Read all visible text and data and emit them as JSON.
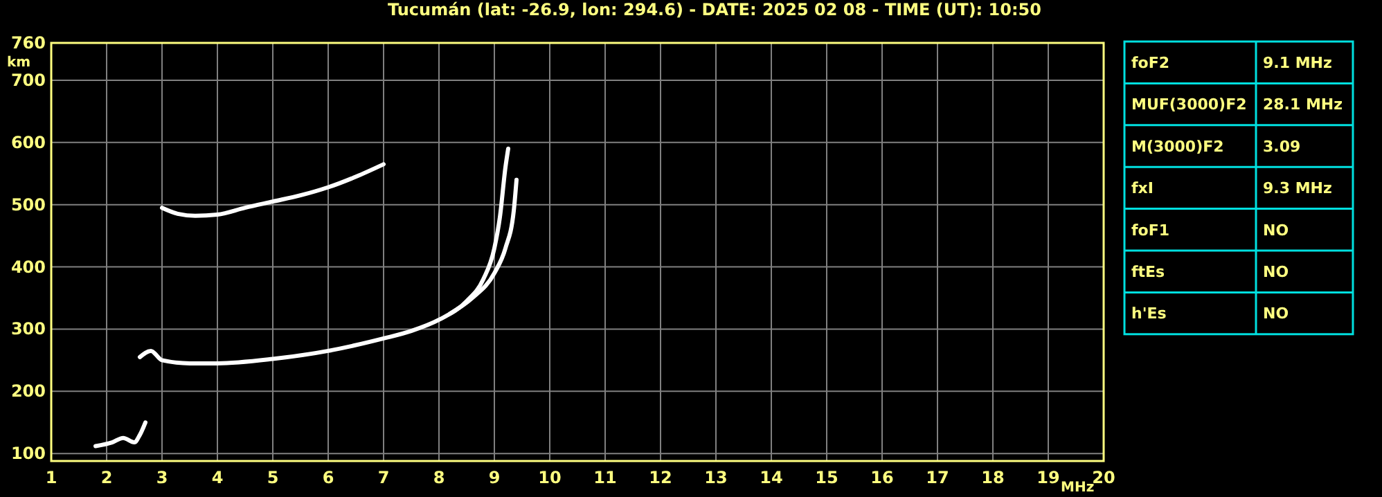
{
  "chart_data": [
    {
      "type": "line",
      "title": "Tucumán (lat: -26.9, lon: 294.6) - DATE: 2025 02 08 - TIME (UT): 10:50",
      "xlabel": "MHz",
      "ylabel": "km",
      "xlim": [
        1,
        20
      ],
      "xticks": [
        1,
        2,
        3,
        4,
        5,
        6,
        7,
        8,
        9,
        10,
        11,
        12,
        13,
        14,
        15,
        16,
        17,
        18,
        19,
        20
      ],
      "ylim": [
        88,
        760
      ],
      "yticks": [
        100,
        200,
        300,
        400,
        500,
        600,
        700,
        760
      ],
      "grid": true,
      "marker": "none",
      "line_style": "solid",
      "series": [
        {
          "color": "#ffffff",
          "x": [
            2.6,
            2.8,
            3.0,
            3.5,
            4,
            5,
            6,
            7,
            7.5,
            8,
            8.5,
            8.8,
            9.0,
            9.1,
            9.2,
            9.25
          ],
          "values": [
            255,
            265,
            250,
            245,
            245,
            252,
            265,
            285,
            297,
            315,
            345,
            380,
            430,
            480,
            560,
            590
          ]
        },
        {
          "color": "#ffffff",
          "x": [
            8.2,
            8.6,
            9.0,
            9.2,
            9.35,
            9.4
          ],
          "values": [
            325,
            350,
            390,
            430,
            490,
            540
          ]
        },
        {
          "color": "#ffffff",
          "x": [
            3.0,
            3.3,
            3.6,
            4,
            4.5,
            5,
            5.5,
            6,
            6.5,
            7
          ],
          "values": [
            495,
            485,
            482,
            484,
            495,
            505,
            515,
            528,
            545,
            565
          ]
        },
        {
          "color": "#ffffff",
          "x": [
            1.8,
            2.1,
            2.3,
            2.5,
            2.6,
            2.7
          ],
          "values": [
            112,
            118,
            125,
            118,
            130,
            150
          ]
        }
      ]
    },
    {
      "type": "other",
      "annotations": [
        "foF2",
        "9.1 MHz",
        "MUF(3000)F2",
        "28.1 MHz",
        "M(3000)F2",
        "3.09",
        "fxI",
        "9.3 MHz",
        "foF1",
        "NO",
        "ftEs",
        "NO",
        "h'Es",
        "NO"
      ]
    }
  ]
}
